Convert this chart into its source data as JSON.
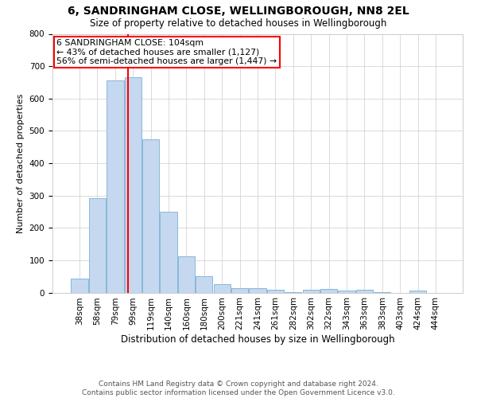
{
  "title": "6, SANDRINGHAM CLOSE, WELLINGBOROUGH, NN8 2EL",
  "subtitle": "Size of property relative to detached houses in Wellingborough",
  "xlabel": "Distribution of detached houses by size in Wellingborough",
  "ylabel": "Number of detached properties",
  "footer_line1": "Contains HM Land Registry data © Crown copyright and database right 2024.",
  "footer_line2": "Contains public sector information licensed under the Open Government Licence v3.0.",
  "categories": [
    "38sqm",
    "58sqm",
    "79sqm",
    "99sqm",
    "119sqm",
    "140sqm",
    "160sqm",
    "180sqm",
    "200sqm",
    "221sqm",
    "241sqm",
    "261sqm",
    "282sqm",
    "302sqm",
    "322sqm",
    "343sqm",
    "363sqm",
    "383sqm",
    "403sqm",
    "424sqm",
    "444sqm"
  ],
  "values": [
    44,
    292,
    655,
    665,
    475,
    250,
    112,
    50,
    25,
    14,
    13,
    8,
    1,
    8,
    10,
    5,
    8,
    2,
    0,
    6,
    0
  ],
  "bar_color": "#c5d8f0",
  "bar_edgecolor": "#7bafd4",
  "annotation_text_line1": "6 SANDRINGHAM CLOSE: 104sqm",
  "annotation_text_line2": "← 43% of detached houses are smaller (1,127)",
  "annotation_text_line3": "56% of semi-detached houses are larger (1,447) →",
  "annotation_box_color": "white",
  "annotation_box_edgecolor": "red",
  "vline_color": "red",
  "grid_color": "#cccccc",
  "background_color": "white",
  "ylim": [
    0,
    800
  ],
  "vline_pos": 2.73,
  "title_fontsize": 10,
  "subtitle_fontsize": 8.5,
  "ylabel_fontsize": 8,
  "xlabel_fontsize": 8.5,
  "tick_fontsize": 7.5,
  "annot_fontsize": 7.8,
  "footer_fontsize": 6.5
}
